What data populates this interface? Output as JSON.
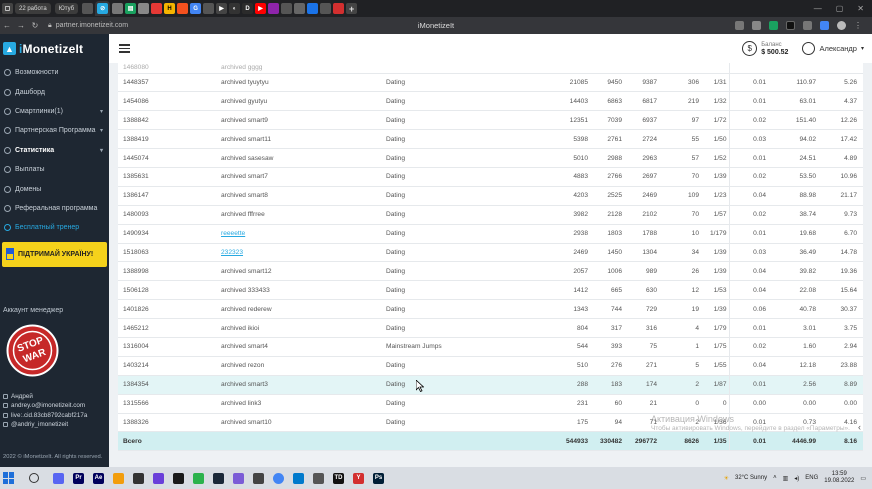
{
  "browser": {
    "tab_pills": [
      "22 работа",
      "Ютуб"
    ],
    "url": "partner.imonetizeit.com",
    "page_title": "iMonetizeIt"
  },
  "sidebar": {
    "brand_prefix": "i",
    "brand_main": "MonetizeIt",
    "items": [
      {
        "label": "Возможности",
        "icon": "home-icon"
      },
      {
        "label": "Дашборд",
        "icon": "dashboard-icon"
      },
      {
        "label": "Смартлинки(1)",
        "icon": "link-icon",
        "has_chevron": true
      },
      {
        "label": "Партнерская Программа",
        "icon": "partner-icon",
        "has_chevron": true
      },
      {
        "label": "Статистика",
        "icon": "stats-icon",
        "has_chevron": true,
        "active": true
      },
      {
        "label": "Выплаты",
        "icon": "payout-icon"
      },
      {
        "label": "Домены",
        "icon": "globe-icon"
      },
      {
        "label": "Реферальная программа",
        "icon": "referral-icon"
      },
      {
        "label": "Бесплатный тренер",
        "icon": "trainer-icon",
        "link": true
      }
    ],
    "ua_banner": "ПІДТРИМАЙ УКРАЇНУ!",
    "manager_title": "Аккаунт менеджер",
    "stop_war_top": "STOP",
    "stop_war_bottom": "WAR",
    "manager": {
      "name": "Андрей",
      "email": "andrey.o@imonetizeit.com",
      "live": "live:.cid.83cb8792cabf217a",
      "telegram": "@andriy_imonetizeit"
    },
    "copyright": "2022 © iMonetizeIt. All rights reserved."
  },
  "header": {
    "balance_label": "Баланс",
    "balance_value": "$ 500.52",
    "user_name": "Александр"
  },
  "table": {
    "rows": [
      {
        "id": "1448357",
        "name": "archived tyuytyu",
        "cat": "Dating",
        "a": "21085",
        "b": "9450",
        "c": "9387",
        "d": "306",
        "r": "1/31",
        "e": "0.01",
        "f": "110.97",
        "g": "5.26"
      },
      {
        "id": "1454086",
        "name": "archived gyutyu",
        "cat": "Dating",
        "a": "14403",
        "b": "6863",
        "c": "6817",
        "d": "219",
        "r": "1/32",
        "e": "0.01",
        "f": "63.01",
        "g": "4.37"
      },
      {
        "id": "1388842",
        "name": "archived smart9",
        "cat": "Dating",
        "a": "12351",
        "b": "7039",
        "c": "6937",
        "d": "97",
        "r": "1/72",
        "e": "0.02",
        "f": "151.40",
        "g": "12.26"
      },
      {
        "id": "1388419",
        "name": "archived smart11",
        "cat": "Dating",
        "a": "5398",
        "b": "2761",
        "c": "2724",
        "d": "55",
        "r": "1/50",
        "e": "0.03",
        "f": "94.02",
        "g": "17.42"
      },
      {
        "id": "1445074",
        "name": "archived sasesaw",
        "cat": "Dating",
        "a": "5010",
        "b": "2988",
        "c": "2963",
        "d": "57",
        "r": "1/52",
        "e": "0.01",
        "f": "24.51",
        "g": "4.89"
      },
      {
        "id": "1385631",
        "name": "archived smart7",
        "cat": "Dating",
        "a": "4883",
        "b": "2766",
        "c": "2697",
        "d": "70",
        "r": "1/39",
        "e": "0.02",
        "f": "53.50",
        "g": "10.96"
      },
      {
        "id": "1386147",
        "name": "archived smart8",
        "cat": "Dating",
        "a": "4203",
        "b": "2525",
        "c": "2469",
        "d": "109",
        "r": "1/23",
        "e": "0.04",
        "f": "88.98",
        "g": "21.17"
      },
      {
        "id": "1480093",
        "name": "archived fffrree",
        "cat": "Dating",
        "a": "3982",
        "b": "2128",
        "c": "2102",
        "d": "70",
        "r": "1/57",
        "e": "0.02",
        "f": "38.74",
        "g": "9.73"
      },
      {
        "id": "1490934",
        "name": "reeeette",
        "cat": "Dating",
        "a": "2938",
        "b": "1803",
        "c": "1788",
        "d": "10",
        "r": "1/179",
        "e": "0.01",
        "f": "19.68",
        "g": "6.70",
        "link": true
      },
      {
        "id": "1518063",
        "name": "232323",
        "cat": "Dating",
        "a": "2469",
        "b": "1450",
        "c": "1304",
        "d": "34",
        "r": "1/39",
        "e": "0.03",
        "f": "36.49",
        "g": "14.78",
        "link": true
      },
      {
        "id": "1388998",
        "name": "archived smart12",
        "cat": "Dating",
        "a": "2057",
        "b": "1006",
        "c": "989",
        "d": "26",
        "r": "1/39",
        "e": "0.04",
        "f": "39.82",
        "g": "19.36"
      },
      {
        "id": "1506128",
        "name": "archived 333433",
        "cat": "Dating",
        "a": "1412",
        "b": "665",
        "c": "630",
        "d": "12",
        "r": "1/53",
        "e": "0.04",
        "f": "22.08",
        "g": "15.64"
      },
      {
        "id": "1401826",
        "name": "archived rederew",
        "cat": "Dating",
        "a": "1343",
        "b": "744",
        "c": "729",
        "d": "19",
        "r": "1/39",
        "e": "0.06",
        "f": "40.78",
        "g": "30.37"
      },
      {
        "id": "1465212",
        "name": "archived ikioi",
        "cat": "Dating",
        "a": "804",
        "b": "317",
        "c": "316",
        "d": "4",
        "r": "1/79",
        "e": "0.01",
        "f": "3.01",
        "g": "3.75"
      },
      {
        "id": "1316004",
        "name": "archived smart4",
        "cat": "Mainstream Jumps",
        "a": "544",
        "b": "393",
        "c": "75",
        "d": "1",
        "r": "1/75",
        "e": "0.02",
        "f": "1.60",
        "g": "2.94"
      },
      {
        "id": "1403214",
        "name": "archived rezon",
        "cat": "Dating",
        "a": "510",
        "b": "276",
        "c": "271",
        "d": "5",
        "r": "1/55",
        "e": "0.04",
        "f": "12.18",
        "g": "23.88"
      },
      {
        "id": "1384354",
        "name": "archived smart3",
        "cat": "Dating",
        "a": "288",
        "b": "183",
        "c": "174",
        "d": "2",
        "r": "1/87",
        "e": "0.01",
        "f": "2.56",
        "g": "8.89",
        "highlight": true
      },
      {
        "id": "1315566",
        "name": "archived link3",
        "cat": "Dating",
        "a": "231",
        "b": "60",
        "c": "21",
        "d": "0",
        "r": "0",
        "e": "0.00",
        "f": "0.00",
        "g": "0.00"
      },
      {
        "id": "1388326",
        "name": "archived smart10",
        "cat": "Dating",
        "a": "175",
        "b": "94",
        "c": "71",
        "d": "2",
        "r": "1/36",
        "e": "0.01",
        "f": "0.73",
        "g": "4.16"
      }
    ],
    "total": {
      "label": "Всего",
      "a": "544933",
      "b": "330482",
      "c": "296772",
      "d": "8626",
      "r": "1/35",
      "e": "0.01",
      "f": "4446.99",
      "g": "8.16"
    }
  },
  "watermark": {
    "title": "Активация Windows",
    "text": "Чтобы активировать Windows, перейдите в раздел «Параметры»."
  },
  "taskbar": {
    "weather": "32°C Sunny",
    "lang": "ENG",
    "time": "13:59",
    "date": "19.08.2022"
  },
  "colors": {
    "sidebar_bg": "#1e2732",
    "accent": "#27a9e1",
    "ua_yellow": "#f5d21b",
    "row_highlight": "#e3f5f6",
    "total_bg": "#d1eff1"
  }
}
